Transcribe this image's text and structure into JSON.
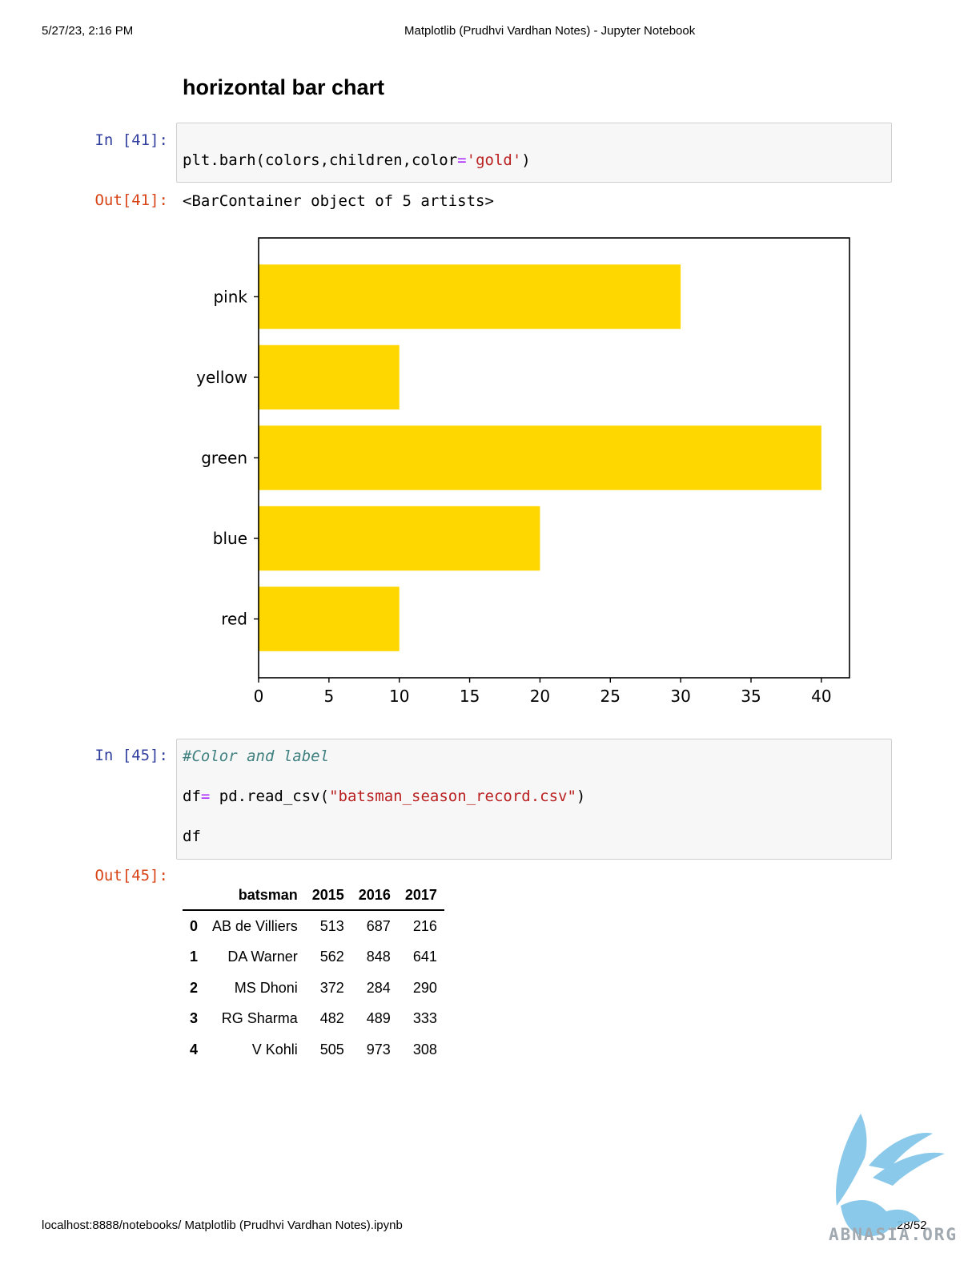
{
  "browser": {
    "date_time": "5/27/23, 2:16 PM",
    "page_title": "Matplotlib (Prudhvi Vardhan Notes) - Jupyter Notebook",
    "url": "localhost:8888/notebooks/ Matplotlib (Prudhvi Vardhan Notes).ipynb",
    "page_number": "28/52"
  },
  "section_heading": "horizontal bar chart",
  "cell41": {
    "in_prompt": "In [41]:",
    "out_prompt": "Out[41]:",
    "code_pre": "plt.barh(colors,children,color",
    "code_op": "=",
    "code_str": "'gold'",
    "code_post": ")",
    "output_text": "<BarContainer object of 5 artists>"
  },
  "chart_data": {
    "type": "bar",
    "orientation": "horizontal",
    "categories": [
      "red",
      "blue",
      "green",
      "yellow",
      "pink"
    ],
    "values": [
      10,
      20,
      40,
      10,
      30
    ],
    "bar_color": "#ffd700",
    "xlim": [
      0,
      42
    ],
    "xticks": [
      0,
      5,
      10,
      15,
      20,
      25,
      30,
      35,
      40
    ],
    "title": "",
    "xlabel": "",
    "ylabel": "",
    "grid": false
  },
  "cell45": {
    "in_prompt": "In [45]:",
    "out_prompt": "Out[45]:",
    "comment": "#Color and label",
    "line2_pre": "df",
    "line2_op": "=",
    "line2_mid": " pd.read_csv(",
    "line2_str": "\"batsman_season_record.csv\"",
    "line2_post": ")",
    "line3": "df"
  },
  "dataframe": {
    "columns": [
      "",
      "batsman",
      "2015",
      "2016",
      "2017"
    ],
    "rows": [
      {
        "index": "0",
        "batsman": "AB de Villiers",
        "y2015": "513",
        "y2016": "687",
        "y2017": "216"
      },
      {
        "index": "1",
        "batsman": "DA Warner",
        "y2015": "562",
        "y2016": "848",
        "y2017": "641"
      },
      {
        "index": "2",
        "batsman": "MS Dhoni",
        "y2015": "372",
        "y2016": "284",
        "y2017": "290"
      },
      {
        "index": "3",
        "batsman": "RG Sharma",
        "y2015": "482",
        "y2016": "489",
        "y2017": "333"
      },
      {
        "index": "4",
        "batsman": "V Kohli",
        "y2015": "505",
        "y2016": "973",
        "y2017": "308"
      }
    ]
  },
  "watermark": "ABNASIA.ORG"
}
